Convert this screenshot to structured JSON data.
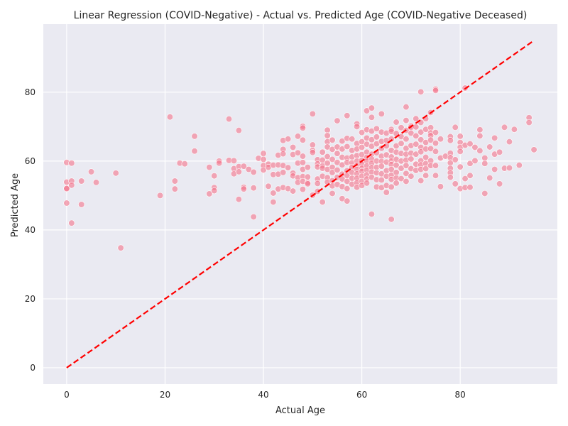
{
  "chart_data": {
    "type": "scatter",
    "title": "Linear Regression (COVID-Negative) - Actual vs. Predicted Age (COVID-Negative Deceased)",
    "xlabel": "Actual Age",
    "ylabel": "Predicted Age",
    "xlim": [
      -4.75,
      99.75
    ],
    "ylim": [
      -4.75,
      99.75
    ],
    "xticks": [
      0,
      20,
      40,
      60,
      80
    ],
    "yticks": [
      0,
      20,
      40,
      60,
      80
    ],
    "grid": true,
    "background": "#eaeaf2",
    "point_color": "#f4738a",
    "reference_line": {
      "x": [
        0,
        95
      ],
      "y": [
        0,
        95
      ],
      "style": "dashed",
      "color": "#ff0000"
    },
    "points": [
      [
        0,
        59.6
      ],
      [
        0,
        53.9
      ],
      [
        0,
        52.1
      ],
      [
        0,
        52.0
      ],
      [
        0,
        47.8
      ],
      [
        1,
        59.4
      ],
      [
        1,
        54.2
      ],
      [
        1,
        53.0
      ],
      [
        1,
        42.0
      ],
      [
        3,
        54.2
      ],
      [
        3,
        47.4
      ],
      [
        5,
        56.9
      ],
      [
        6,
        53.8
      ],
      [
        10,
        56.5
      ],
      [
        11,
        34.8
      ],
      [
        19,
        50.0
      ],
      [
        21,
        72.8
      ],
      [
        22,
        54.2
      ],
      [
        22,
        51.9
      ],
      [
        23,
        59.4
      ],
      [
        24,
        59.2
      ],
      [
        26,
        67.2
      ],
      [
        26,
        62.9
      ],
      [
        29,
        58.2
      ],
      [
        29,
        50.5
      ],
      [
        30,
        55.7
      ],
      [
        30,
        52.3
      ],
      [
        30,
        51.4
      ],
      [
        31,
        60.0
      ],
      [
        31,
        59.4
      ],
      [
        33,
        72.2
      ],
      [
        33,
        60.2
      ],
      [
        34,
        60.1
      ],
      [
        34,
        57.8
      ],
      [
        34,
        56.3
      ],
      [
        35,
        68.9
      ],
      [
        35,
        58.4
      ],
      [
        35,
        56.9
      ],
      [
        35,
        48.9
      ],
      [
        36,
        58.5
      ],
      [
        36,
        52.4
      ],
      [
        36,
        51.9
      ],
      [
        37,
        57.6
      ],
      [
        38,
        56.8
      ],
      [
        38,
        52.2
      ],
      [
        38,
        43.8
      ],
      [
        39,
        60.8
      ],
      [
        40,
        62.2
      ],
      [
        40,
        60.5
      ],
      [
        40,
        58.7
      ],
      [
        40,
        57.4
      ],
      [
        41,
        59.1
      ],
      [
        41,
        58.2
      ],
      [
        41,
        52.7
      ],
      [
        42,
        58.8
      ],
      [
        42,
        56.1
      ],
      [
        42,
        50.7
      ],
      [
        42,
        48.1
      ],
      [
        43,
        61.7
      ],
      [
        43,
        58.9
      ],
      [
        43,
        56.2
      ],
      [
        43,
        51.9
      ],
      [
        44,
        66.0
      ],
      [
        44,
        63.4
      ],
      [
        44,
        62.1
      ],
      [
        44,
        58.7
      ],
      [
        44,
        56.7
      ],
      [
        44,
        52.3
      ],
      [
        45,
        66.4
      ],
      [
        45,
        58.1
      ],
      [
        45,
        52.0
      ],
      [
        46,
        64.0
      ],
      [
        46,
        61.9
      ],
      [
        46,
        56.5
      ],
      [
        46,
        55.7
      ],
      [
        46,
        51.3
      ],
      [
        47,
        67.2
      ],
      [
        47,
        62.4
      ],
      [
        47,
        59.4
      ],
      [
        47,
        55.2
      ],
      [
        47,
        53.8
      ],
      [
        48,
        70.1
      ],
      [
        48,
        69.6
      ],
      [
        48,
        66.1
      ],
      [
        48,
        61.4
      ],
      [
        48,
        59.6
      ],
      [
        48,
        57.6
      ],
      [
        48,
        55.5
      ],
      [
        48,
        54.1
      ],
      [
        48,
        51.8
      ],
      [
        49,
        58.2
      ],
      [
        49,
        55.4
      ],
      [
        49,
        53.7
      ],
      [
        49,
        53.4
      ],
      [
        50,
        73.7
      ],
      [
        50,
        64.7
      ],
      [
        50,
        63.1
      ],
      [
        50,
        62.5
      ],
      [
        50,
        50.1
      ],
      [
        51,
        60.4
      ],
      [
        51,
        59.2
      ],
      [
        51,
        58.3
      ],
      [
        51,
        54.8
      ],
      [
        51,
        53.5
      ],
      [
        51,
        51.2
      ],
      [
        52,
        62.6
      ],
      [
        52,
        60.3
      ],
      [
        52,
        58.6
      ],
      [
        52,
        57.9
      ],
      [
        52,
        55.6
      ],
      [
        52,
        48.1
      ],
      [
        53,
        69.0
      ],
      [
        53,
        67.4
      ],
      [
        53,
        65.6
      ],
      [
        53,
        64.1
      ],
      [
        53,
        61.3
      ],
      [
        53,
        59.4
      ],
      [
        53,
        57.6
      ],
      [
        53,
        55.2
      ],
      [
        53,
        53.9
      ],
      [
        54,
        66.1
      ],
      [
        54,
        63.4
      ],
      [
        54,
        60.5
      ],
      [
        54,
        58.2
      ],
      [
        54,
        56.7
      ],
      [
        54,
        54.3
      ],
      [
        54,
        52.8
      ],
      [
        54,
        50.6
      ],
      [
        55,
        71.7
      ],
      [
        55,
        64.1
      ],
      [
        55,
        62.2
      ],
      [
        55,
        59.6
      ],
      [
        55,
        57.4
      ],
      [
        55,
        55.3
      ],
      [
        55,
        53.2
      ],
      [
        56,
        65.8
      ],
      [
        56,
        63.5
      ],
      [
        56,
        61.1
      ],
      [
        56,
        58.9
      ],
      [
        56,
        56.2
      ],
      [
        56,
        54.8
      ],
      [
        56,
        52.6
      ],
      [
        56,
        49.1
      ],
      [
        57,
        73.2
      ],
      [
        57,
        66.6
      ],
      [
        57,
        64.2
      ],
      [
        57,
        60.9
      ],
      [
        57,
        59.6
      ],
      [
        57,
        57.2
      ],
      [
        57,
        55.8
      ],
      [
        57,
        54.1
      ],
      [
        57,
        52.0
      ],
      [
        57,
        48.4
      ],
      [
        58,
        66.4
      ],
      [
        58,
        63.1
      ],
      [
        58,
        61.2
      ],
      [
        58,
        59.5
      ],
      [
        58,
        58.2
      ],
      [
        58,
        56.7
      ],
      [
        58,
        55.0
      ],
      [
        58,
        53.3
      ],
      [
        59,
        70.8
      ],
      [
        59,
        70.0
      ],
      [
        59,
        65.1
      ],
      [
        59,
        63.5
      ],
      [
        59,
        61.6
      ],
      [
        59,
        60.0
      ],
      [
        59,
        58.8
      ],
      [
        59,
        57.6
      ],
      [
        59,
        56.3
      ],
      [
        59,
        55.0
      ],
      [
        59,
        53.7
      ],
      [
        59,
        52.4
      ],
      [
        60,
        68.3
      ],
      [
        60,
        65.6
      ],
      [
        60,
        64.0
      ],
      [
        60,
        61.9
      ],
      [
        60,
        60.2
      ],
      [
        60,
        59.1
      ],
      [
        60,
        57.9
      ],
      [
        60,
        57.0
      ],
      [
        60,
        55.6
      ],
      [
        60,
        54.1
      ],
      [
        60,
        52.9
      ],
      [
        61,
        74.6
      ],
      [
        61,
        69.1
      ],
      [
        61,
        66.7
      ],
      [
        61,
        64.9
      ],
      [
        61,
        62.6
      ],
      [
        61,
        61.1
      ],
      [
        61,
        60.0
      ],
      [
        61,
        58.6
      ],
      [
        61,
        57.4
      ],
      [
        61,
        56.0
      ],
      [
        61,
        54.8
      ],
      [
        61,
        53.6
      ],
      [
        62,
        75.4
      ],
      [
        62,
        72.7
      ],
      [
        62,
        68.7
      ],
      [
        62,
        66.2
      ],
      [
        62,
        64.3
      ],
      [
        62,
        62.0
      ],
      [
        62,
        60.6
      ],
      [
        62,
        59.4
      ],
      [
        62,
        58.1
      ],
      [
        62,
        56.8
      ],
      [
        62,
        55.3
      ],
      [
        62,
        44.6
      ],
      [
        63,
        69.4
      ],
      [
        63,
        67.0
      ],
      [
        63,
        65.0
      ],
      [
        63,
        62.4
      ],
      [
        63,
        60.0
      ],
      [
        63,
        58.2
      ],
      [
        63,
        56.6
      ],
      [
        63,
        54.6
      ],
      [
        63,
        52.5
      ],
      [
        64,
        73.7
      ],
      [
        64,
        68.4
      ],
      [
        64,
        65.7
      ],
      [
        64,
        63.7
      ],
      [
        64,
        61.4
      ],
      [
        64,
        59.9
      ],
      [
        64,
        58.5
      ],
      [
        64,
        56.3
      ],
      [
        64,
        54.5
      ],
      [
        64,
        52.3
      ],
      [
        65,
        68.1
      ],
      [
        65,
        66.0
      ],
      [
        65,
        64.4
      ],
      [
        65,
        61.8
      ],
      [
        65,
        59.7
      ],
      [
        65,
        57.2
      ],
      [
        65,
        55.6
      ],
      [
        65,
        52.9
      ],
      [
        65,
        50.9
      ],
      [
        66,
        69.2
      ],
      [
        66,
        68.6
      ],
      [
        66,
        66.4
      ],
      [
        66,
        63.1
      ],
      [
        66,
        61.2
      ],
      [
        66,
        60.0
      ],
      [
        66,
        59.0
      ],
      [
        66,
        57.6
      ],
      [
        66,
        55.9
      ],
      [
        66,
        54.7
      ],
      [
        66,
        52.5
      ],
      [
        66,
        43.1
      ],
      [
        67,
        71.3
      ],
      [
        67,
        68.0
      ],
      [
        67,
        64.4
      ],
      [
        67,
        62.6
      ],
      [
        67,
        60.5
      ],
      [
        67,
        58.8
      ],
      [
        67,
        56.7
      ],
      [
        67,
        55.1
      ],
      [
        67,
        53.6
      ],
      [
        68,
        69.7
      ],
      [
        68,
        67.1
      ],
      [
        68,
        65.1
      ],
      [
        68,
        62.2
      ],
      [
        68,
        60.0
      ],
      [
        68,
        57.9
      ],
      [
        68,
        54.9
      ],
      [
        69,
        75.7
      ],
      [
        69,
        71.8
      ],
      [
        69,
        68.9
      ],
      [
        69,
        66.4
      ],
      [
        69,
        63.7
      ],
      [
        69,
        62.0
      ],
      [
        69,
        60.3
      ],
      [
        69,
        58.7
      ],
      [
        69,
        56.4
      ],
      [
        69,
        54.1
      ],
      [
        70,
        70.2
      ],
      [
        70,
        69.8
      ],
      [
        70,
        68.1
      ],
      [
        70,
        64.5
      ],
      [
        70,
        62.3
      ],
      [
        70,
        60.6
      ],
      [
        70,
        57.8
      ],
      [
        70,
        55.6
      ],
      [
        71,
        72.3
      ],
      [
        71,
        69.9
      ],
      [
        71,
        67.3
      ],
      [
        71,
        64.9
      ],
      [
        71,
        62.0
      ],
      [
        71,
        59.1
      ],
      [
        71,
        57.3
      ],
      [
        72,
        80.1
      ],
      [
        72,
        71.2
      ],
      [
        72,
        68.4
      ],
      [
        72,
        66.2
      ],
      [
        72,
        64.0
      ],
      [
        72,
        62.7
      ],
      [
        72,
        60.1
      ],
      [
        72,
        58.9
      ],
      [
        72,
        57.6
      ],
      [
        72,
        54.3
      ],
      [
        73,
        72.3
      ],
      [
        73,
        69.2
      ],
      [
        73,
        65.4
      ],
      [
        73,
        63.5
      ],
      [
        73,
        61.1
      ],
      [
        73,
        59.3
      ],
      [
        73,
        57.8
      ],
      [
        73,
        55.8
      ],
      [
        74,
        74.1
      ],
      [
        74,
        69.7
      ],
      [
        74,
        68.2
      ],
      [
        74,
        67.4
      ],
      [
        74,
        66.1
      ],
      [
        74,
        63.6
      ],
      [
        74,
        60.1
      ],
      [
        74,
        58.7
      ],
      [
        75,
        80.9
      ],
      [
        75,
        80.5
      ],
      [
        75,
        68.3
      ],
      [
        75,
        65.2
      ],
      [
        75,
        62.8
      ],
      [
        75,
        58.7
      ],
      [
        75,
        55.8
      ],
      [
        76,
        66.4
      ],
      [
        76,
        60.9
      ],
      [
        76,
        52.6
      ],
      [
        77,
        61.4
      ],
      [
        78,
        67.1
      ],
      [
        78,
        66.0
      ],
      [
        78,
        62.3
      ],
      [
        78,
        61.0
      ],
      [
        78,
        59.5
      ],
      [
        78,
        57.9
      ],
      [
        78,
        56.6
      ],
      [
        78,
        55.3
      ],
      [
        79,
        69.8
      ],
      [
        79,
        60.4
      ],
      [
        79,
        53.4
      ],
      [
        80,
        67.2
      ],
      [
        80,
        65.4
      ],
      [
        80,
        64.0
      ],
      [
        80,
        62.8
      ],
      [
        80,
        58.3
      ],
      [
        80,
        52.0
      ],
      [
        81,
        81.2
      ],
      [
        81,
        64.6
      ],
      [
        81,
        54.9
      ],
      [
        81,
        52.3
      ],
      [
        82,
        65.0
      ],
      [
        82,
        59.3
      ],
      [
        82,
        55.8
      ],
      [
        82,
        52.4
      ],
      [
        83,
        64.0
      ],
      [
        83,
        60.1
      ],
      [
        84,
        69.1
      ],
      [
        84,
        67.3
      ],
      [
        84,
        63.0
      ],
      [
        85,
        60.9
      ],
      [
        85,
        59.3
      ],
      [
        85,
        50.6
      ],
      [
        86,
        64.1
      ],
      [
        86,
        55.1
      ],
      [
        87,
        66.7
      ],
      [
        87,
        62.0
      ],
      [
        87,
        57.6
      ],
      [
        88,
        62.6
      ],
      [
        88,
        53.4
      ],
      [
        89,
        69.8
      ],
      [
        89,
        57.9
      ],
      [
        90,
        65.6
      ],
      [
        90,
        58.0
      ],
      [
        91,
        69.2
      ],
      [
        92,
        58.8
      ],
      [
        94,
        72.6
      ],
      [
        94,
        71.2
      ],
      [
        95,
        63.3
      ]
    ]
  }
}
